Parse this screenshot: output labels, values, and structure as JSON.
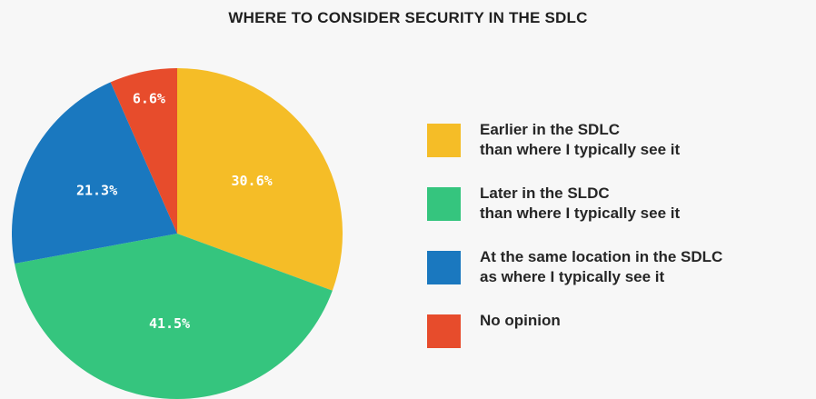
{
  "chart_data": {
    "type": "pie",
    "title": "WHERE TO CONSIDER SECURITY IN THE SDLC",
    "slices": [
      {
        "name": "Earlier in the SDLC\nthan where I typically see it",
        "value": 30.6,
        "label": "30.6%",
        "color": "#f5bd27"
      },
      {
        "name": "Later in the SLDC\nthan where I typically see it",
        "value": 41.5,
        "label": "41.5%",
        "color": "#35c57e"
      },
      {
        "name": "At the same location in the SDLC\nas where I typically see it",
        "value": 21.3,
        "label": "21.3%",
        "color": "#1a78bf"
      },
      {
        "name": "No opinion",
        "value": 6.6,
        "label": "6.6%",
        "color": "#e74c2c"
      }
    ],
    "start_angle": "12 o'clock",
    "direction": "clockwise",
    "legend_position": "right"
  }
}
